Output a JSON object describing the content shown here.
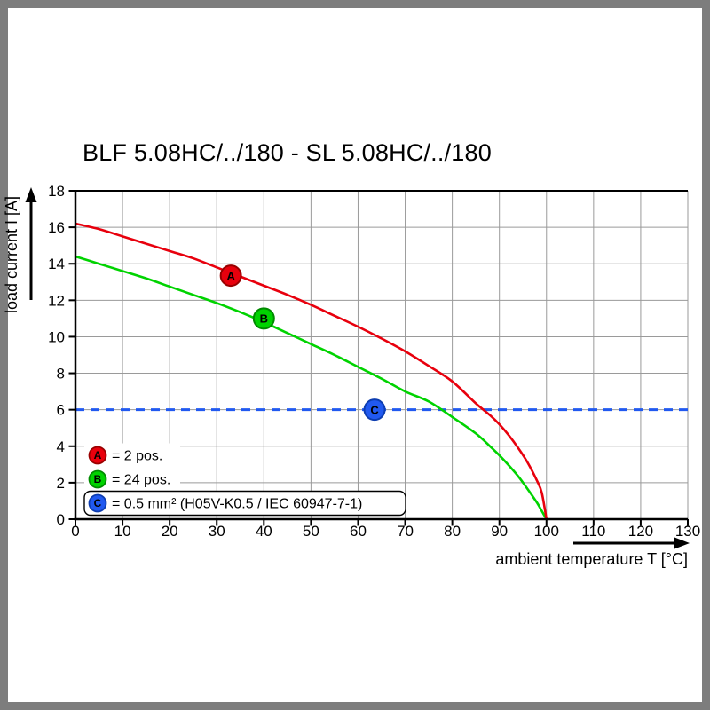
{
  "frame": {
    "border_color": "#7d7d7d",
    "canvas_color": "#ffffff"
  },
  "chart_data": {
    "type": "line",
    "title": "BLF 5.08HC/../180 - SL 5.08HC/../180",
    "xlabel": "ambient temperature T [°C]",
    "ylabel": "load current I [A]",
    "xlim": [
      0,
      130
    ],
    "ylim": [
      0,
      18
    ],
    "xticks": [
      0,
      10,
      20,
      30,
      40,
      50,
      60,
      70,
      80,
      90,
      100,
      110,
      120,
      130
    ],
    "yticks": [
      0,
      2,
      4,
      6,
      8,
      10,
      12,
      14,
      16,
      18
    ],
    "grid": true,
    "grid_color": "#9a9a9a",
    "axis_color": "#000000",
    "legend_position": "bottom-left-inside",
    "series": [
      {
        "name": "A",
        "label": "= 2 pos.",
        "color": "#e8000d",
        "edge": "#990000",
        "marker": {
          "x": 33,
          "y": 13.35
        },
        "points": [
          [
            0,
            16.2
          ],
          [
            5,
            15.9
          ],
          [
            10,
            15.5
          ],
          [
            15,
            15.1
          ],
          [
            20,
            14.7
          ],
          [
            25,
            14.3
          ],
          [
            30,
            13.8
          ],
          [
            35,
            13.3
          ],
          [
            40,
            12.8
          ],
          [
            45,
            12.3
          ],
          [
            50,
            11.75
          ],
          [
            55,
            11.15
          ],
          [
            60,
            10.55
          ],
          [
            65,
            9.9
          ],
          [
            70,
            9.2
          ],
          [
            75,
            8.4
          ],
          [
            80,
            7.55
          ],
          [
            85,
            6.35
          ],
          [
            88,
            5.7
          ],
          [
            90,
            5.2
          ],
          [
            92,
            4.6
          ],
          [
            94,
            3.9
          ],
          [
            96,
            3.1
          ],
          [
            98,
            2.1
          ],
          [
            99,
            1.45
          ],
          [
            100,
            0
          ]
        ]
      },
      {
        "name": "B",
        "label": "= 24 pos.",
        "color": "#00d300",
        "edge": "#008a00",
        "marker": {
          "x": 40,
          "y": 11.0
        },
        "points": [
          [
            0,
            14.4
          ],
          [
            5,
            14.0
          ],
          [
            10,
            13.6
          ],
          [
            15,
            13.2
          ],
          [
            20,
            12.75
          ],
          [
            25,
            12.3
          ],
          [
            30,
            11.85
          ],
          [
            35,
            11.35
          ],
          [
            40,
            10.8
          ],
          [
            45,
            10.2
          ],
          [
            50,
            9.6
          ],
          [
            55,
            9.0
          ],
          [
            60,
            8.35
          ],
          [
            65,
            7.7
          ],
          [
            70,
            7.0
          ],
          [
            75,
            6.45
          ],
          [
            80,
            5.6
          ],
          [
            85,
            4.7
          ],
          [
            88,
            4.0
          ],
          [
            90,
            3.5
          ],
          [
            92,
            2.95
          ],
          [
            94,
            2.35
          ],
          [
            96,
            1.65
          ],
          [
            98,
            0.9
          ],
          [
            99,
            0.45
          ],
          [
            100,
            0
          ]
        ]
      },
      {
        "name": "C",
        "label": "= 0.5 mm² (H05V-K0.5 / IEC 60947-7-1)",
        "color": "#2159f0",
        "edge": "#0d3db0",
        "type": "hline",
        "y": 6,
        "dashed": true,
        "boxed_legend": true,
        "marker": {
          "x": 63.5,
          "y": 6
        }
      }
    ]
  }
}
